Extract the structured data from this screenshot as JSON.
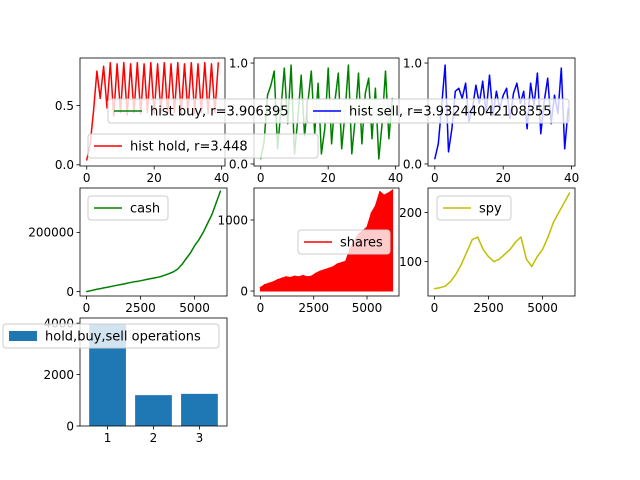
{
  "chart_data": [
    {
      "type": "line",
      "title": "",
      "xlabel": "",
      "ylabel": "",
      "xlim": [
        -2,
        41
      ],
      "ylim": [
        -0.01,
        0.9
      ],
      "xticks": [
        0,
        20,
        40
      ],
      "yticks": [
        0.0,
        0.5
      ],
      "xtick_labels": [
        "0",
        "20",
        "40"
      ],
      "ytick_labels": [
        "0.0",
        "0.5"
      ],
      "legend_position": "center",
      "color": "#ff0000",
      "series": [
        {
          "name": "hist hold, r=3.448",
          "x": [
            0,
            1,
            2,
            3,
            4,
            5,
            6,
            7,
            8,
            9,
            10,
            11,
            12,
            13,
            14,
            15,
            16,
            17,
            18,
            19,
            20,
            21,
            22,
            23,
            24,
            25,
            26,
            27,
            28,
            29,
            30,
            31,
            32,
            33,
            34,
            35,
            36,
            37,
            38,
            39
          ],
          "y": [
            0.04,
            0.17,
            0.45,
            0.79,
            0.56,
            0.83,
            0.48,
            0.86,
            0.41,
            0.85,
            0.44,
            0.86,
            0.42,
            0.85,
            0.44,
            0.86,
            0.43,
            0.85,
            0.44,
            0.86,
            0.43,
            0.85,
            0.44,
            0.86,
            0.43,
            0.85,
            0.44,
            0.86,
            0.43,
            0.85,
            0.44,
            0.86,
            0.43,
            0.85,
            0.44,
            0.86,
            0.43,
            0.85,
            0.44,
            0.86
          ]
        }
      ]
    },
    {
      "type": "line",
      "title": "",
      "xlabel": "",
      "ylabel": "",
      "xlim": [
        -2,
        41
      ],
      "ylim": [
        -0.02,
        1.05
      ],
      "xticks": [
        0,
        20,
        40
      ],
      "yticks": [
        0.0,
        1.0
      ],
      "xtick_labels": [
        "0",
        "20",
        "40"
      ],
      "ytick_labels": [
        "0.0",
        "1.0"
      ],
      "legend_position": "center",
      "color": "#008000",
      "series": [
        {
          "name": "hist buy, r=3.906395",
          "x": [
            0,
            1,
            2,
            3,
            4,
            5,
            6,
            7,
            8,
            9,
            10,
            11,
            12,
            13,
            14,
            15,
            16,
            17,
            18,
            19,
            20,
            21,
            22,
            23,
            24,
            25,
            26,
            27,
            28,
            29,
            30,
            31,
            32,
            33,
            34,
            35,
            36,
            37,
            38,
            39
          ],
          "y": [
            0.05,
            0.22,
            0.68,
            0.78,
            0.92,
            0.15,
            0.55,
            0.95,
            0.4,
            0.98,
            0.1,
            0.45,
            0.88,
            0.28,
            0.62,
            0.92,
            0.3,
            0.8,
            0.1,
            0.35,
            0.95,
            0.2,
            0.62,
            0.9,
            0.15,
            0.5,
            0.98,
            0.1,
            0.45,
            0.9,
            0.2,
            0.7,
            0.85,
            0.25,
            0.75,
            0.05,
            0.4,
            0.92,
            0.25,
            0.65
          ]
        }
      ]
    },
    {
      "type": "line",
      "title": "",
      "xlabel": "",
      "ylabel": "",
      "xlim": [
        -2,
        41
      ],
      "ylim": [
        -0.02,
        1.05
      ],
      "xticks": [
        0,
        20,
        40
      ],
      "yticks": [
        0.0,
        1.0
      ],
      "xtick_labels": [
        "0",
        "20",
        "40"
      ],
      "ytick_labels": [
        "0.0",
        "1.0"
      ],
      "legend_position": "center",
      "color": "#0000ff",
      "series": [
        {
          "name": "hist sell, r=3.93244042108355",
          "x": [
            0,
            1,
            2,
            3,
            4,
            5,
            6,
            7,
            8,
            9,
            10,
            11,
            12,
            13,
            14,
            15,
            16,
            17,
            18,
            19,
            20,
            21,
            22,
            23,
            24,
            25,
            26,
            27,
            28,
            29,
            30,
            31,
            32,
            33,
            34,
            35,
            36,
            37,
            38,
            39
          ],
          "y": [
            0.05,
            0.2,
            0.58,
            0.98,
            0.12,
            0.35,
            0.72,
            0.75,
            0.65,
            0.8,
            0.42,
            0.55,
            0.78,
            0.6,
            0.82,
            0.5,
            0.88,
            0.48,
            0.72,
            0.55,
            0.68,
            0.75,
            0.45,
            0.7,
            0.8,
            0.6,
            0.72,
            0.35,
            0.8,
            0.58,
            0.9,
            0.3,
            0.62,
            0.85,
            0.4,
            0.68,
            0.5,
            0.95,
            0.15,
            0.55
          ]
        }
      ]
    },
    {
      "type": "line",
      "title": "",
      "xlabel": "",
      "ylabel": "",
      "xlim": [
        -300,
        6500
      ],
      "ylim": [
        -15000,
        350000
      ],
      "xticks": [
        0,
        2500,
        5000
      ],
      "yticks": [
        0,
        200000
      ],
      "xtick_labels": [
        "0",
        "2500",
        "5000"
      ],
      "ytick_labels": [
        "0",
        "200000"
      ],
      "legend_position": "upper left",
      "color": "#008000",
      "series": [
        {
          "name": "cash",
          "x": [
            0,
            200,
            400,
            600,
            800,
            1000,
            1200,
            1400,
            1600,
            1800,
            2000,
            2200,
            2400,
            2600,
            2800,
            3000,
            3200,
            3400,
            3600,
            3800,
            4000,
            4200,
            4400,
            4600,
            4800,
            5000,
            5200,
            5400,
            5600,
            5800,
            6000,
            6200
          ],
          "y": [
            0,
            3000,
            6500,
            9500,
            12500,
            15000,
            18000,
            21000,
            24000,
            27000,
            30000,
            33000,
            35000,
            38000,
            41000,
            44000,
            47000,
            50000,
            55000,
            60000,
            66000,
            75000,
            90000,
            110000,
            130000,
            155000,
            175000,
            200000,
            230000,
            260000,
            300000,
            340000
          ]
        }
      ]
    },
    {
      "type": "area",
      "title": "",
      "xlabel": "",
      "ylabel": "",
      "xlim": [
        -300,
        6500
      ],
      "ylim": [
        -70,
        1450
      ],
      "xticks": [
        0,
        2500,
        5000
      ],
      "yticks": [
        0,
        1000
      ],
      "xtick_labels": [
        "0",
        "2500",
        "5000"
      ],
      "ytick_labels": [
        "0",
        "1000"
      ],
      "legend_position": "center right",
      "color": "#ff0000",
      "series": [
        {
          "name": "shares",
          "x": [
            0,
            200,
            400,
            600,
            800,
            1000,
            1200,
            1400,
            1600,
            1800,
            2000,
            2200,
            2400,
            2600,
            2800,
            3000,
            3200,
            3400,
            3600,
            3800,
            4000,
            4200,
            4400,
            4600,
            4800,
            5000,
            5200,
            5400,
            5600,
            5800,
            6000,
            6200
          ],
          "y": [
            50,
            90,
            110,
            130,
            160,
            180,
            200,
            190,
            210,
            200,
            220,
            200,
            210,
            250,
            280,
            300,
            320,
            340,
            380,
            400,
            420,
            600,
            700,
            800,
            850,
            900,
            1100,
            1200,
            1400,
            1350,
            1380,
            1420
          ]
        }
      ]
    },
    {
      "type": "line",
      "title": "",
      "xlabel": "",
      "ylabel": "",
      "xlim": [
        -300,
        6500
      ],
      "ylim": [
        30,
        250
      ],
      "xticks": [
        0,
        2500,
        5000
      ],
      "yticks": [
        100,
        200
      ],
      "xtick_labels": [
        "0",
        "2500",
        "5000"
      ],
      "ytick_labels": [
        "100",
        "200"
      ],
      "legend_position": "upper left",
      "color": "#bfbf00",
      "series": [
        {
          "name": "spy",
          "x": [
            0,
            250,
            500,
            750,
            1000,
            1250,
            1500,
            1750,
            2000,
            2250,
            2500,
            2750,
            3000,
            3250,
            3500,
            3750,
            4000,
            4250,
            4500,
            4750,
            5000,
            5250,
            5500,
            5750,
            6000,
            6250
          ],
          "y": [
            45,
            47,
            50,
            60,
            75,
            95,
            120,
            145,
            150,
            125,
            110,
            100,
            105,
            115,
            125,
            140,
            150,
            105,
            90,
            110,
            125,
            150,
            180,
            200,
            220,
            240
          ]
        }
      ]
    },
    {
      "type": "bar",
      "title": "",
      "xlabel": "",
      "ylabel": "",
      "xlim": [
        0.4,
        3.6
      ],
      "ylim": [
        0,
        4200
      ],
      "xticks": [
        1,
        2,
        3
      ],
      "yticks": [
        0,
        2000,
        4000
      ],
      "xtick_labels": [
        "1",
        "2",
        "3"
      ],
      "ytick_labels": [
        "0",
        "2000",
        "4000"
      ],
      "legend_position": "upper left",
      "color": "#1f77b4",
      "categories": [
        1,
        2,
        3
      ],
      "series": [
        {
          "name": "hold,buy,sell operations",
          "values": [
            3950,
            1200,
            1250
          ]
        }
      ]
    }
  ]
}
